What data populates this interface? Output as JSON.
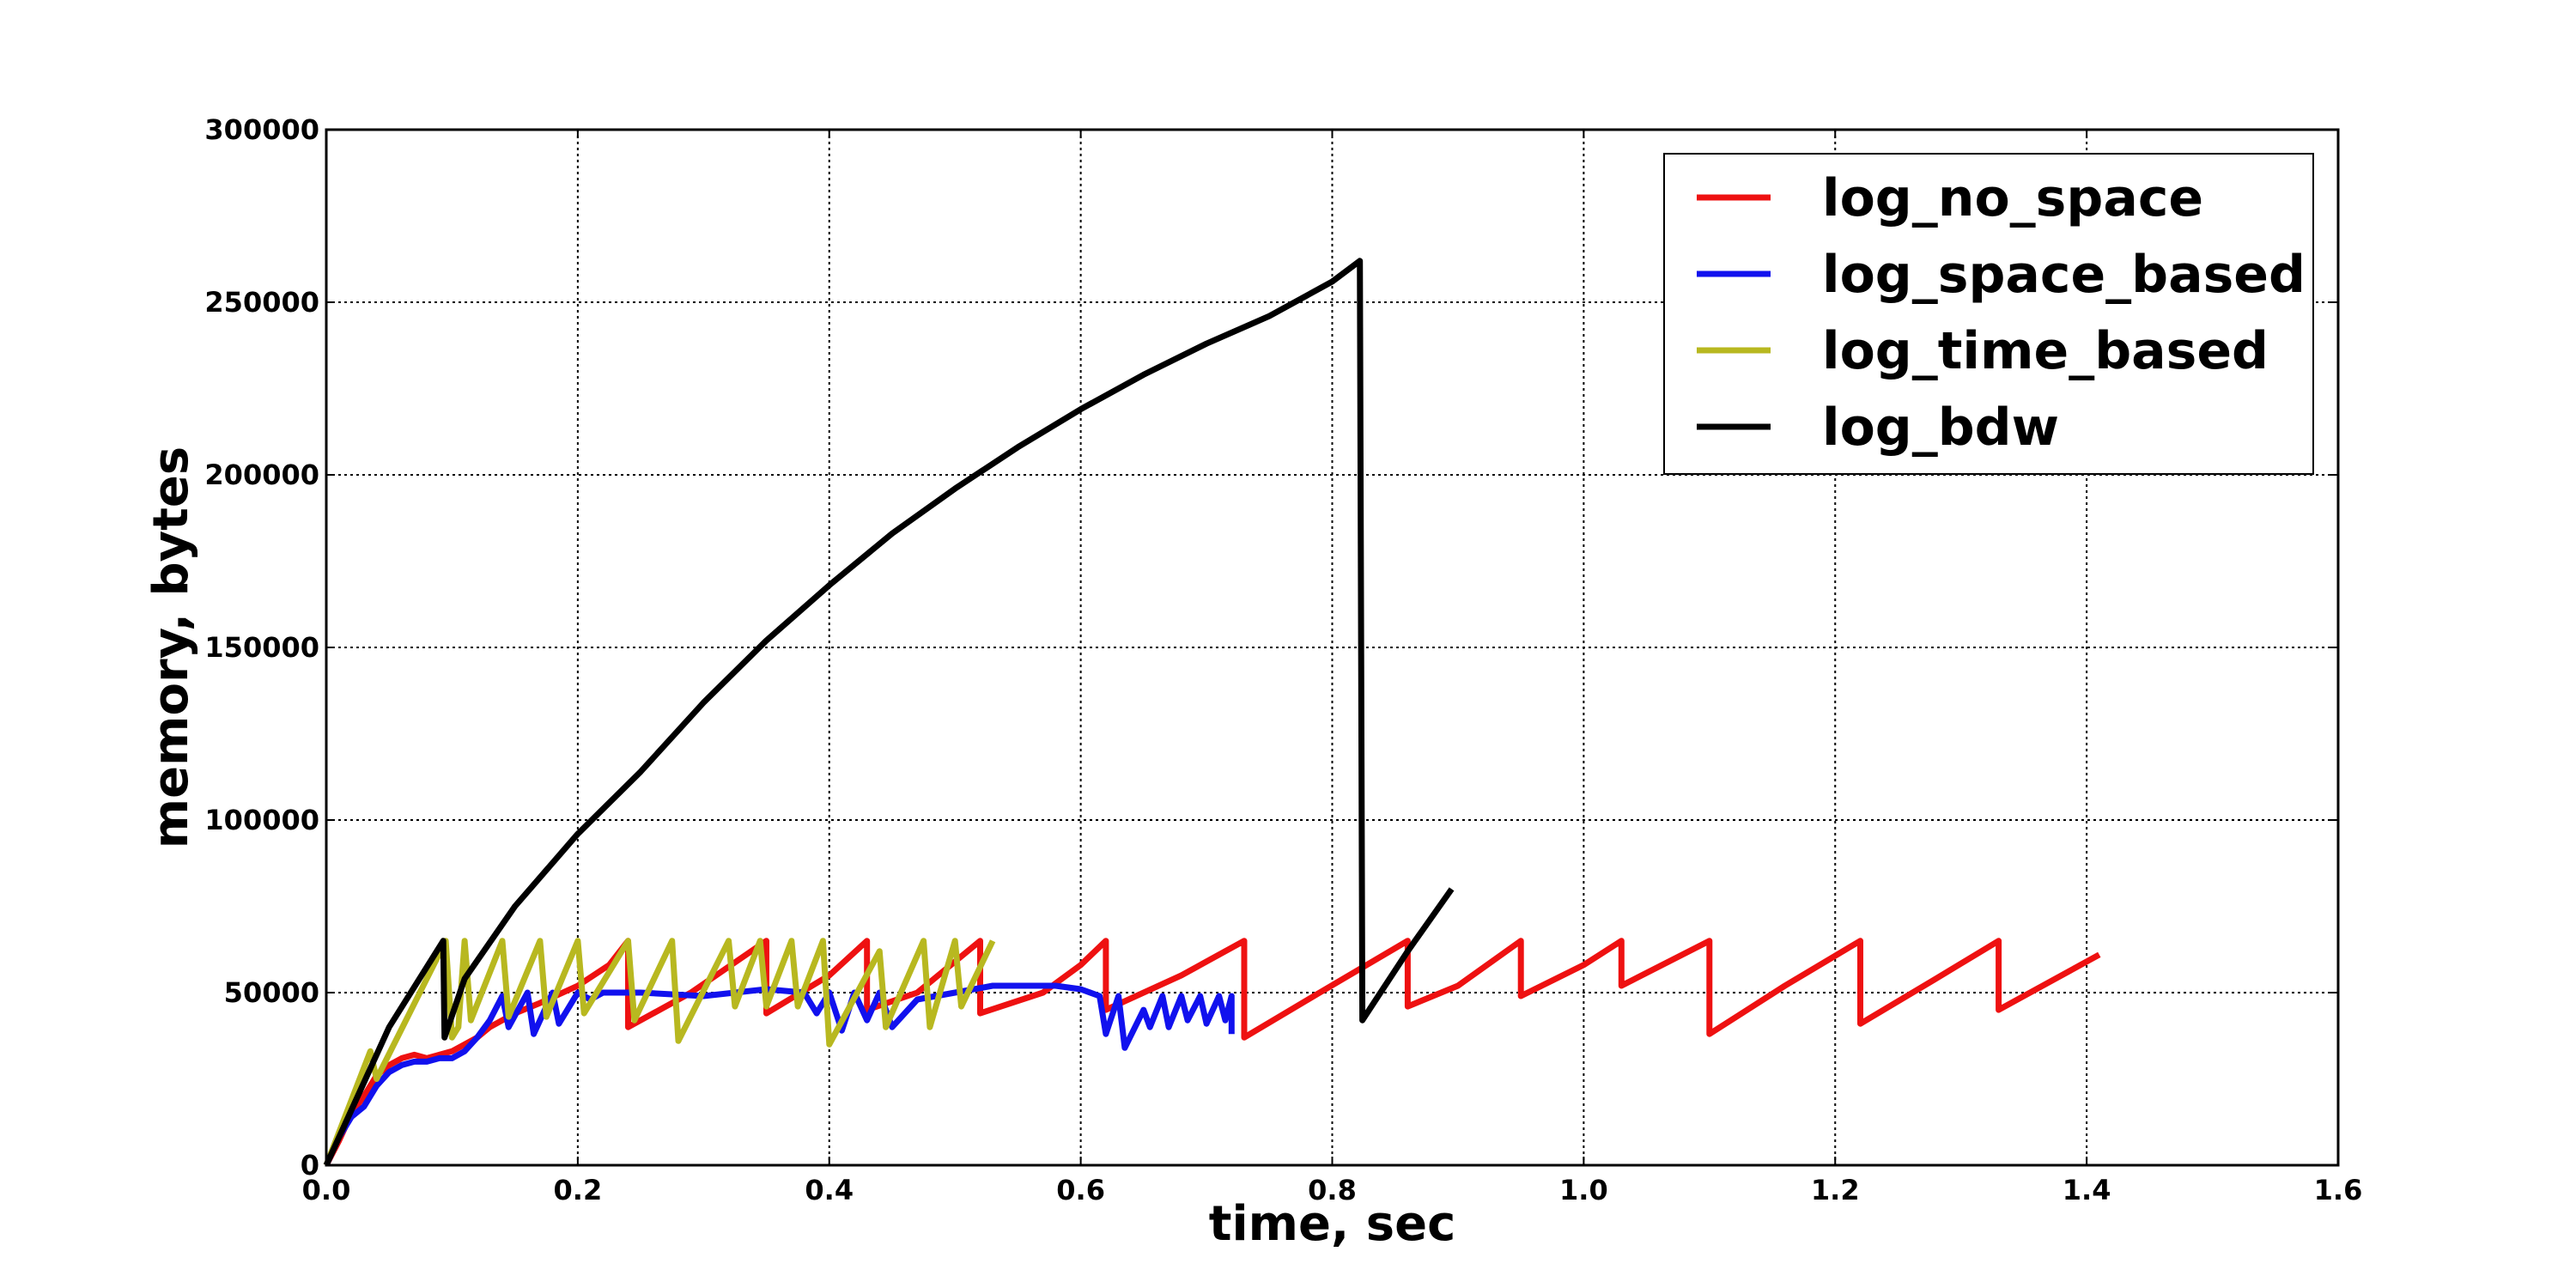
{
  "chart_data": {
    "type": "line",
    "title": "",
    "xlabel": "time, sec",
    "ylabel": "memory, bytes",
    "xlim": [
      0.0,
      1.6
    ],
    "ylim": [
      0,
      300000
    ],
    "xticks": [
      0.0,
      0.2,
      0.4,
      0.6,
      0.8,
      1.0,
      1.2,
      1.4,
      1.6
    ],
    "xtick_labels": [
      "0.0",
      "0.2",
      "0.4",
      "0.6",
      "0.8",
      "1.0",
      "1.2",
      "1.4",
      "1.6"
    ],
    "yticks": [
      0,
      50000,
      100000,
      150000,
      200000,
      250000,
      300000
    ],
    "ytick_labels": [
      "0",
      "50000",
      "100000",
      "150000",
      "200000",
      "250000",
      "300000"
    ],
    "grid": true,
    "legend_position": "top-right",
    "series": [
      {
        "name": "log_no_space",
        "color": "#ee1111",
        "points": [
          [
            0.0,
            0
          ],
          [
            0.01,
            7000
          ],
          [
            0.02,
            15000
          ],
          [
            0.03,
            20000
          ],
          [
            0.04,
            26000
          ],
          [
            0.05,
            29000
          ],
          [
            0.06,
            31000
          ],
          [
            0.07,
            32000
          ],
          [
            0.08,
            31000
          ],
          [
            0.1,
            33000
          ],
          [
            0.11,
            35000
          ],
          [
            0.12,
            37000
          ],
          [
            0.13,
            40000
          ],
          [
            0.15,
            44000
          ],
          [
            0.17,
            47000
          ],
          [
            0.2,
            52000
          ],
          [
            0.225,
            58000
          ],
          [
            0.24,
            65000
          ],
          [
            0.24,
            40000
          ],
          [
            0.29,
            50000
          ],
          [
            0.35,
            65000
          ],
          [
            0.35,
            44000
          ],
          [
            0.4,
            55000
          ],
          [
            0.43,
            65000
          ],
          [
            0.43,
            45000
          ],
          [
            0.47,
            50000
          ],
          [
            0.52,
            65000
          ],
          [
            0.52,
            44000
          ],
          [
            0.57,
            50000
          ],
          [
            0.6,
            58000
          ],
          [
            0.62,
            65000
          ],
          [
            0.62,
            45000
          ],
          [
            0.68,
            55000
          ],
          [
            0.73,
            65000
          ],
          [
            0.73,
            37000
          ],
          [
            0.79,
            50000
          ],
          [
            0.86,
            65000
          ],
          [
            0.86,
            46000
          ],
          [
            0.9,
            52000
          ],
          [
            0.95,
            65000
          ],
          [
            0.95,
            49000
          ],
          [
            1.0,
            58000
          ],
          [
            1.03,
            65000
          ],
          [
            1.03,
            52000
          ],
          [
            1.1,
            65000
          ],
          [
            1.1,
            38000
          ],
          [
            1.16,
            52000
          ],
          [
            1.22,
            65000
          ],
          [
            1.22,
            41000
          ],
          [
            1.28,
            54000
          ],
          [
            1.33,
            65000
          ],
          [
            1.33,
            45000
          ],
          [
            1.41,
            61000
          ]
        ]
      },
      {
        "name": "log_space_based",
        "color": "#1111ee",
        "points": [
          [
            0.0,
            0
          ],
          [
            0.01,
            8000
          ],
          [
            0.02,
            14000
          ],
          [
            0.03,
            17000
          ],
          [
            0.04,
            23000
          ],
          [
            0.05,
            27000
          ],
          [
            0.06,
            29000
          ],
          [
            0.07,
            30000
          ],
          [
            0.08,
            30000
          ],
          [
            0.09,
            31000
          ],
          [
            0.1,
            31000
          ],
          [
            0.11,
            33000
          ],
          [
            0.12,
            37000
          ],
          [
            0.13,
            42000
          ],
          [
            0.14,
            49000
          ],
          [
            0.145,
            40000
          ],
          [
            0.16,
            50000
          ],
          [
            0.165,
            38000
          ],
          [
            0.18,
            50000
          ],
          [
            0.185,
            41000
          ],
          [
            0.2,
            50000
          ],
          [
            0.21,
            48000
          ],
          [
            0.22,
            50000
          ],
          [
            0.25,
            50000
          ],
          [
            0.3,
            49000
          ],
          [
            0.35,
            51000
          ],
          [
            0.38,
            50000
          ],
          [
            0.39,
            44000
          ],
          [
            0.4,
            50000
          ],
          [
            0.41,
            39000
          ],
          [
            0.42,
            50000
          ],
          [
            0.43,
            42000
          ],
          [
            0.44,
            50000
          ],
          [
            0.45,
            40000
          ],
          [
            0.47,
            48000
          ],
          [
            0.5,
            50000
          ],
          [
            0.53,
            52000
          ],
          [
            0.58,
            52000
          ],
          [
            0.6,
            51000
          ],
          [
            0.615,
            49000
          ],
          [
            0.62,
            38000
          ],
          [
            0.63,
            49000
          ],
          [
            0.635,
            34000
          ],
          [
            0.65,
            45000
          ],
          [
            0.655,
            40000
          ],
          [
            0.665,
            49000
          ],
          [
            0.67,
            40000
          ],
          [
            0.68,
            49000
          ],
          [
            0.685,
            42000
          ],
          [
            0.695,
            49000
          ],
          [
            0.7,
            41000
          ],
          [
            0.71,
            49000
          ],
          [
            0.715,
            42000
          ],
          [
            0.72,
            49000
          ],
          [
            0.72,
            38000
          ]
        ]
      },
      {
        "name": "log_time_based",
        "color": "#b8b820",
        "points": [
          [
            0.0,
            0
          ],
          [
            0.035,
            33000
          ],
          [
            0.04,
            25000
          ],
          [
            0.095,
            65000
          ],
          [
            0.1,
            37000
          ],
          [
            0.105,
            40000
          ],
          [
            0.11,
            65000
          ],
          [
            0.115,
            42000
          ],
          [
            0.14,
            65000
          ],
          [
            0.145,
            43000
          ],
          [
            0.17,
            65000
          ],
          [
            0.175,
            43000
          ],
          [
            0.2,
            65000
          ],
          [
            0.205,
            44000
          ],
          [
            0.24,
            65000
          ],
          [
            0.245,
            42000
          ],
          [
            0.275,
            65000
          ],
          [
            0.28,
            36000
          ],
          [
            0.32,
            65000
          ],
          [
            0.325,
            46000
          ],
          [
            0.345,
            65000
          ],
          [
            0.35,
            46000
          ],
          [
            0.37,
            65000
          ],
          [
            0.375,
            46000
          ],
          [
            0.395,
            65000
          ],
          [
            0.4,
            35000
          ],
          [
            0.44,
            62000
          ],
          [
            0.445,
            40000
          ],
          [
            0.475,
            65000
          ],
          [
            0.48,
            40000
          ],
          [
            0.5,
            65000
          ],
          [
            0.505,
            46000
          ],
          [
            0.53,
            65000
          ]
        ]
      },
      {
        "name": "log_bdw",
        "color": "#000000",
        "points": [
          [
            0.0,
            0
          ],
          [
            0.05,
            40000
          ],
          [
            0.093,
            65000
          ],
          [
            0.094,
            37000
          ],
          [
            0.11,
            54000
          ],
          [
            0.15,
            75000
          ],
          [
            0.2,
            96000
          ],
          [
            0.25,
            114000
          ],
          [
            0.3,
            134000
          ],
          [
            0.35,
            152000
          ],
          [
            0.4,
            168000
          ],
          [
            0.45,
            183000
          ],
          [
            0.5,
            196000
          ],
          [
            0.55,
            208000
          ],
          [
            0.6,
            219000
          ],
          [
            0.65,
            229000
          ],
          [
            0.7,
            238000
          ],
          [
            0.75,
            246000
          ],
          [
            0.8,
            256000
          ],
          [
            0.822,
            262000
          ],
          [
            0.824,
            42000
          ],
          [
            0.86,
            62000
          ],
          [
            0.895,
            80000
          ]
        ]
      }
    ]
  }
}
